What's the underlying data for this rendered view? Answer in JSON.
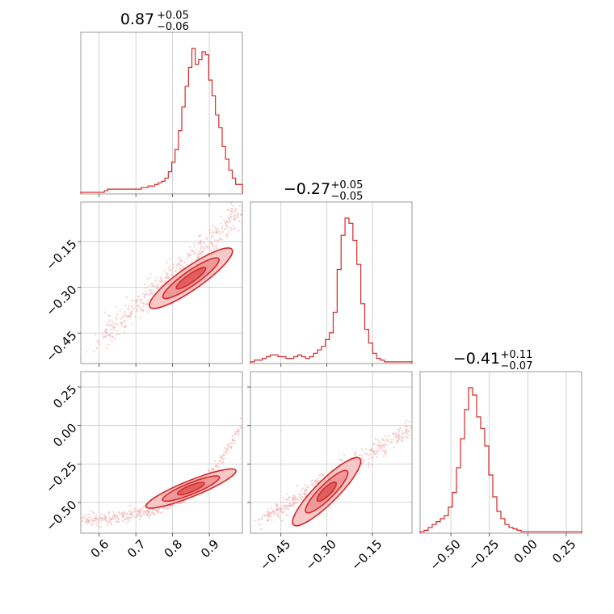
{
  "chart_data": {
    "type": "corner",
    "color": "#d62728",
    "parameters": [
      {
        "median": "0.87",
        "plus": "+0.05",
        "minus": "−0.06",
        "range": [
          0.55,
          0.99
        ],
        "ticks": [
          "0.6",
          "0.7",
          "0.8",
          "0.9"
        ],
        "tick_values": [
          0.6,
          0.7,
          0.8,
          0.9
        ]
      },
      {
        "median": "−0.27",
        "plus": "+0.05",
        "minus": "−0.05",
        "range": [
          -0.55,
          -0.02
        ],
        "ticks": [
          "−0.45",
          "−0.30",
          "−0.15"
        ],
        "tick_values": [
          -0.45,
          -0.3,
          -0.15
        ]
      },
      {
        "median": "−0.41",
        "plus": "+0.11",
        "minus": "−0.07",
        "range": [
          -0.7,
          0.35
        ],
        "ticks": [
          "−0.50",
          "−0.25",
          "0.00",
          "0.25"
        ],
        "tick_values": [
          -0.5,
          -0.25,
          0.0,
          0.25
        ]
      }
    ],
    "histograms": [
      {
        "param": 0,
        "heights": [
          1,
          1,
          1,
          1,
          1,
          1,
          1,
          2,
          3,
          3,
          3,
          3,
          3,
          3,
          3,
          3,
          3,
          3,
          4,
          4,
          5,
          5,
          6,
          7,
          8,
          10,
          14,
          20,
          28,
          40,
          55,
          68,
          80,
          92,
          82,
          85,
          90,
          88,
          72,
          62,
          50,
          42,
          30,
          22,
          15,
          10,
          6,
          6
        ]
      },
      {
        "param": 1,
        "heights": [
          1,
          2,
          2,
          3,
          4,
          5,
          5,
          4,
          4,
          3,
          3,
          4,
          5,
          4,
          3,
          4,
          6,
          8,
          10,
          14,
          18,
          30,
          55,
          75,
          85,
          82,
          72,
          58,
          35,
          20,
          12,
          6,
          3,
          2,
          1,
          1,
          1,
          1,
          1,
          1,
          1
        ]
      },
      {
        "param": 2,
        "heights": [
          1,
          2,
          4,
          6,
          8,
          10,
          12,
          18,
          28,
          45,
          65,
          85,
          100,
          95,
          80,
          72,
          60,
          40,
          25,
          15,
          10,
          6,
          4,
          3,
          2,
          1,
          1,
          1,
          1,
          1,
          1,
          1,
          1,
          1,
          1,
          1,
          1,
          1,
          1,
          1
        ]
      }
    ],
    "pairs": [
      {
        "x": 0,
        "y": 1,
        "center": [
          0.85,
          -0.27
        ]
      },
      {
        "x": 0,
        "y": 2,
        "center": [
          0.85,
          -0.41
        ]
      },
      {
        "x": 1,
        "y": 2,
        "center": [
          -0.3,
          -0.43
        ]
      }
    ]
  }
}
